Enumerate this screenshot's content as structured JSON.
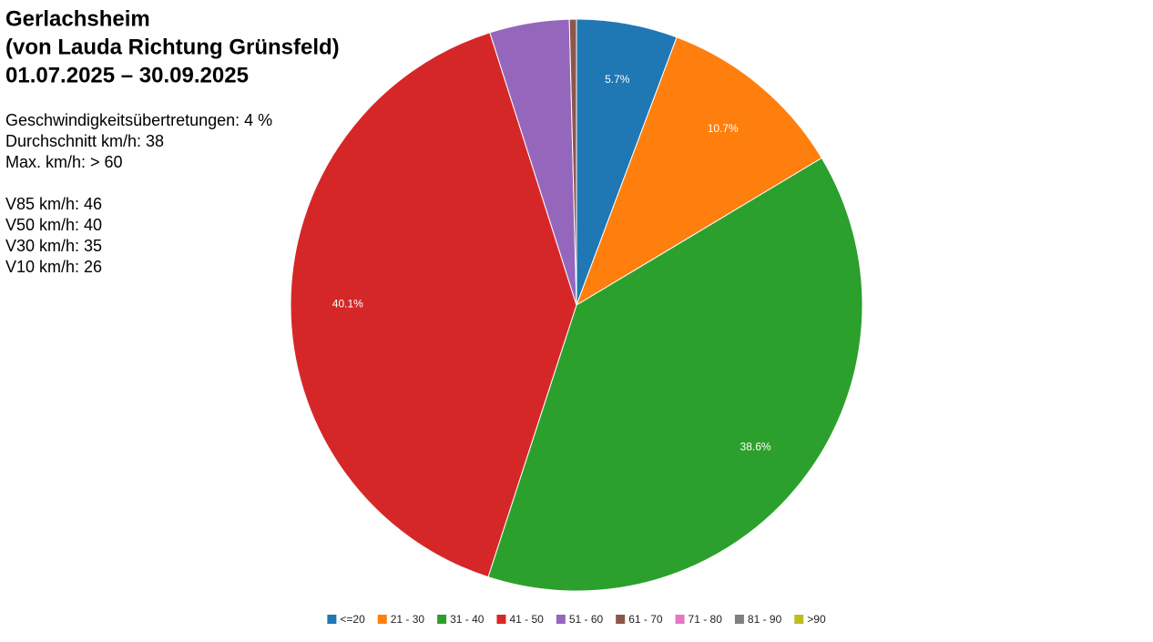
{
  "chart_data": {
    "type": "pie",
    "title": [
      "Gerlachsheim",
      "(von Lauda Richtung Grünsfeld)",
      "01.07.2025 – 30.09.2025"
    ],
    "annotations": [
      "Geschwindigkeitsübertretungen: 4 %",
      "Durchschnitt km/h: 38",
      "Max. km/h: > 60",
      "V85 km/h: 46",
      "V50 km/h: 40",
      "V30 km/h: 35",
      "V10 km/h: 26"
    ],
    "categories": [
      "<=20",
      "21 - 30",
      "31 - 40",
      "41 - 50",
      "51 - 60",
      "61 - 70",
      "71 - 80",
      "81 - 90",
      ">90"
    ],
    "values": [
      5.7,
      10.7,
      38.6,
      40.1,
      4.5,
      0.4,
      0,
      0,
      0
    ],
    "value_labels": [
      "5.7%",
      "10.7%",
      "38.6%",
      "40.1%",
      null,
      null,
      null,
      null,
      null
    ],
    "colors": [
      "#1f77b4",
      "#ff7f0e",
      "#2ca02c",
      "#d62728",
      "#9467bd",
      "#8c564b",
      "#e377c2",
      "#7f7f7f",
      "#bcbd22"
    ],
    "legend": "bottom"
  }
}
